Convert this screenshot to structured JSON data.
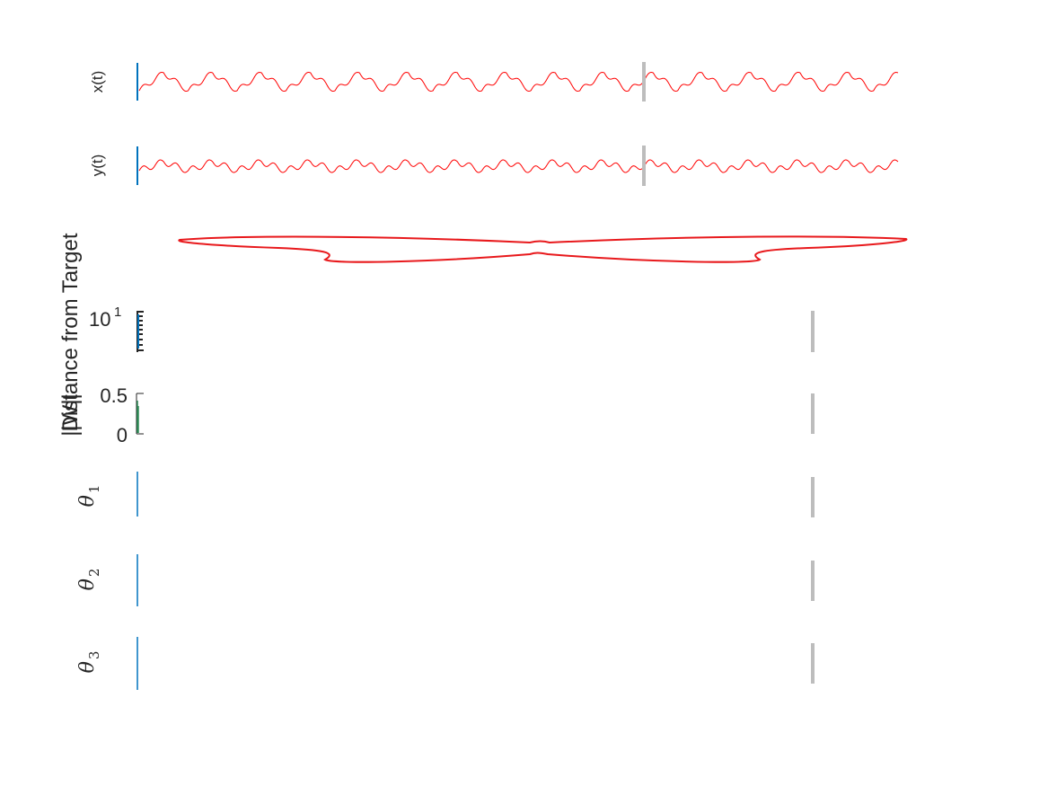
{
  "chart_data": [
    {
      "type": "line",
      "ylabel": "x(t)",
      "series": [
        {
          "waveform": "triangle-with-ripple",
          "periods": 15.5,
          "color": "#ff0000"
        }
      ],
      "marker_color": "#bdbdbd"
    },
    {
      "type": "line",
      "ylabel": "y(t)",
      "series": [
        {
          "waveform": "triangle-with-ripple",
          "periods": 15.5,
          "color": "#ff0000"
        }
      ],
      "marker_color": "#bdbdbd"
    },
    {
      "type": "line",
      "ylabel": "",
      "series": [
        {
          "waveform": "closed-loop-trajectory",
          "color": "#e8191c"
        }
      ]
    },
    {
      "type": "line",
      "ylabel": "Distance from Target",
      "yscale": "log",
      "ytick_base": "10",
      "ytick_exponent": "1",
      "marker_color": "#bdbdbd"
    },
    {
      "type": "line",
      "ylabel": "||W||",
      "yticks": [
        "0",
        "0.5"
      ],
      "marker_color": "#bdbdbd"
    },
    {
      "type": "line",
      "ylabel_symbol": "θ",
      "ylabel_subscript": "1",
      "marker_color": "#bdbdbd"
    },
    {
      "type": "line",
      "ylabel_symbol": "θ",
      "ylabel_subscript": "2",
      "marker_color": "#bdbdbd"
    },
    {
      "type": "line",
      "ylabel_symbol": "θ",
      "ylabel_subscript": "3",
      "marker_color": "#bdbdbd"
    }
  ],
  "colors": {
    "trace": "#ff0000",
    "trajectory": "#e8191c",
    "signal": "#0072bd",
    "weight": "#2e8b57",
    "marker": "#bdbdbd",
    "axis": "#262626"
  }
}
